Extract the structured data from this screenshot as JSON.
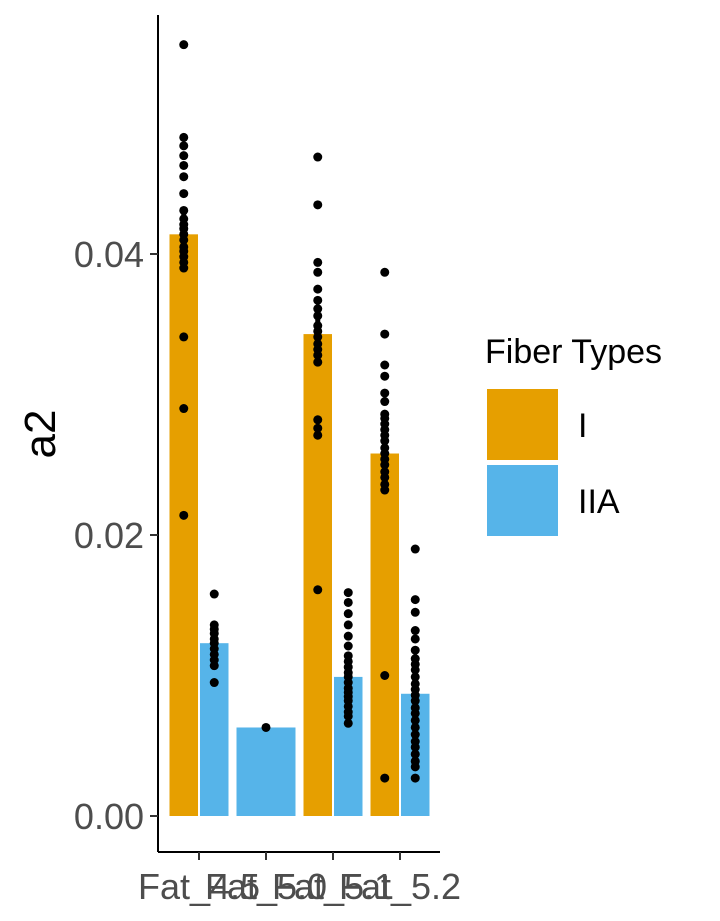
{
  "chart_data": {
    "type": "bar",
    "title": "",
    "xlabel": "",
    "ylabel": "a2",
    "ylim": [
      0,
      0.04
    ],
    "yticks": [
      0.0,
      0.02,
      0.04
    ],
    "ytick_labels": [
      "0.00",
      "0.02",
      "0.04"
    ],
    "categories": [
      "Fat_4.5",
      "Fat_5.0",
      "Fat_5.1",
      "Fat_5.2"
    ],
    "grid": false,
    "legend": {
      "title": "Fiber Types",
      "position": "right"
    },
    "series": [
      {
        "name": "I",
        "color": "#E69F00",
        "values": [
          0.0414,
          null,
          0.0343,
          0.0258
        ],
        "points": [
          [
            0.0549,
            0.0483,
            0.0477,
            0.047,
            0.0463,
            0.0455,
            0.0443,
            0.0431,
            0.0425,
            0.0421,
            0.0418,
            0.0414,
            0.041,
            0.0405,
            0.0402,
            0.0398,
            0.0394,
            0.039,
            0.0341,
            0.029,
            0.0214
          ],
          [],
          [
            0.0469,
            0.0435,
            0.0394,
            0.0387,
            0.0375,
            0.0367,
            0.0361,
            0.0356,
            0.0349,
            0.0345,
            0.0341,
            0.0336,
            0.0332,
            0.0328,
            0.0323,
            0.0282,
            0.0276,
            0.0271,
            0.0161
          ],
          [
            0.0387,
            0.0343,
            0.0321,
            0.0313,
            0.0301,
            0.0295,
            0.0286,
            0.0283,
            0.0279,
            0.0275,
            0.0271,
            0.0267,
            0.0262,
            0.0258,
            0.0254,
            0.025,
            0.0245,
            0.0241,
            0.0236,
            0.0232,
            0.01,
            0.0027
          ]
        ]
      },
      {
        "name": "IIA",
        "color": "#56B4E9",
        "values": [
          0.0123,
          0.0063,
          0.0099,
          0.0087
        ],
        "points": [
          [
            0.0158,
            0.0136,
            0.0133,
            0.013,
            0.0126,
            0.0123,
            0.0119,
            0.0115,
            0.0111,
            0.0107,
            0.0095
          ],
          [
            0.0063
          ],
          [
            0.0159,
            0.0152,
            0.0144,
            0.0136,
            0.0128,
            0.0121,
            0.0114,
            0.011,
            0.0106,
            0.0102,
            0.0099,
            0.0095,
            0.0091,
            0.0088,
            0.0085,
            0.0082,
            0.0078,
            0.0074,
            0.0071,
            0.0066
          ],
          [
            0.019,
            0.0154,
            0.0145,
            0.0132,
            0.0126,
            0.0118,
            0.0112,
            0.0108,
            0.0104,
            0.0099,
            0.0094,
            0.009,
            0.0086,
            0.0082,
            0.0077,
            0.0073,
            0.0068,
            0.0063,
            0.0058,
            0.0053,
            0.0049,
            0.0044,
            0.0039,
            0.0035,
            0.0027
          ]
        ]
      }
    ]
  }
}
